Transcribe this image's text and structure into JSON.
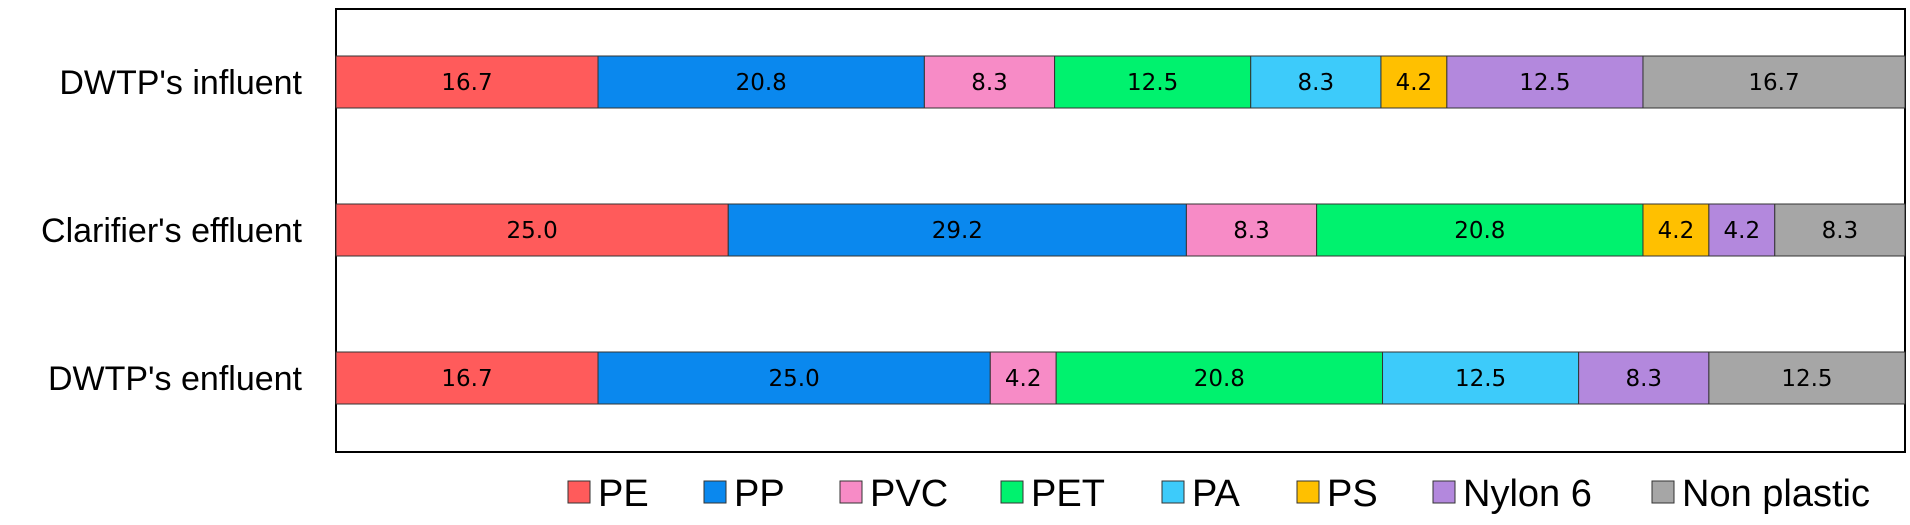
{
  "chart_data": {
    "type": "bar",
    "orientation": "horizontal",
    "stacked": true,
    "categories": [
      "DWTP's influent",
      "Clarifier's effluent",
      "DWTP's enfluent"
    ],
    "xlim": [
      0,
      100
    ],
    "grid": false,
    "legend_position": "bottom",
    "series": [
      {
        "name": "PE",
        "color": "#FF5B5B",
        "values": [
          16.7,
          25.0,
          16.7
        ],
        "labels": [
          "16.7",
          "25.0",
          "16.7"
        ]
      },
      {
        "name": "PP",
        "color": "#0A88EE",
        "values": [
          20.8,
          29.2,
          25.0
        ],
        "labels": [
          "20.8",
          "29.2",
          "25.0"
        ]
      },
      {
        "name": "PVC",
        "color": "#F78BC6",
        "values": [
          8.3,
          8.3,
          4.2
        ],
        "labels": [
          "8.3",
          "8.3",
          "4.2"
        ]
      },
      {
        "name": "PET",
        "color": "#00F26E",
        "values": [
          12.5,
          20.8,
          20.8
        ],
        "labels": [
          "12.5",
          "20.8",
          "20.8"
        ]
      },
      {
        "name": "PA",
        "color": "#3DCBFA",
        "values": [
          8.3,
          0,
          12.5
        ],
        "labels": [
          "8.3",
          "",
          "12.5"
        ]
      },
      {
        "name": "PS",
        "color": "#FFC000",
        "values": [
          4.2,
          4.2,
          0
        ],
        "labels": [
          "4.2",
          "4.2",
          ""
        ]
      },
      {
        "name": "Nylon 6",
        "color": "#B388DD",
        "values": [
          12.5,
          4.2,
          8.3
        ],
        "labels": [
          "12.5",
          "4.2",
          "8.3"
        ]
      },
      {
        "name": "Non plastic",
        "color": "#A6A6A6",
        "values": [
          16.7,
          8.3,
          12.5
        ],
        "labels": [
          "16.7",
          "8.3",
          "12.5"
        ]
      }
    ]
  }
}
